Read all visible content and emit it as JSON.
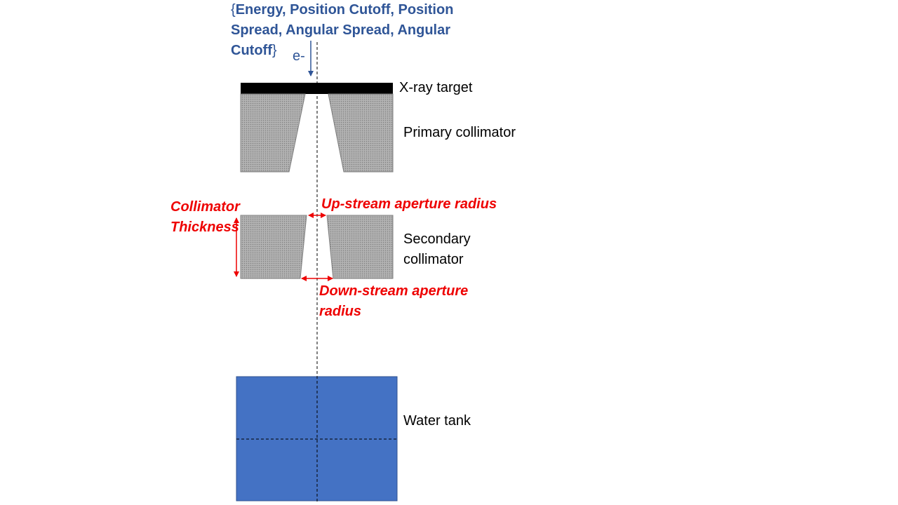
{
  "params_label": {
    "open_brace": "{",
    "lines": [
      "Energy, Position Cutoff, Position",
      "Spread, Angular Spread, Angular",
      "Cutoff"
    ],
    "close_brace": "}"
  },
  "beam_label": "e-",
  "labels": {
    "xray_target": "X-ray target",
    "primary_collimator": "Primary collimator",
    "secondary_collimator": [
      "Secondary",
      "collimator"
    ],
    "water_tank": "Water tank"
  },
  "annotations": {
    "collimator_thickness": [
      "Collimator",
      "Thickness"
    ],
    "upstream_aperture": "Up-stream aperture radius",
    "downstream_aperture": [
      "Down-stream aperture",
      "radius"
    ]
  },
  "colors": {
    "annotation_red": "#ee0000",
    "beam_blue": "#2f5597",
    "water_blue": "#4472c4",
    "collimator_gray": "#a6a6a6",
    "target_black": "#000000"
  }
}
